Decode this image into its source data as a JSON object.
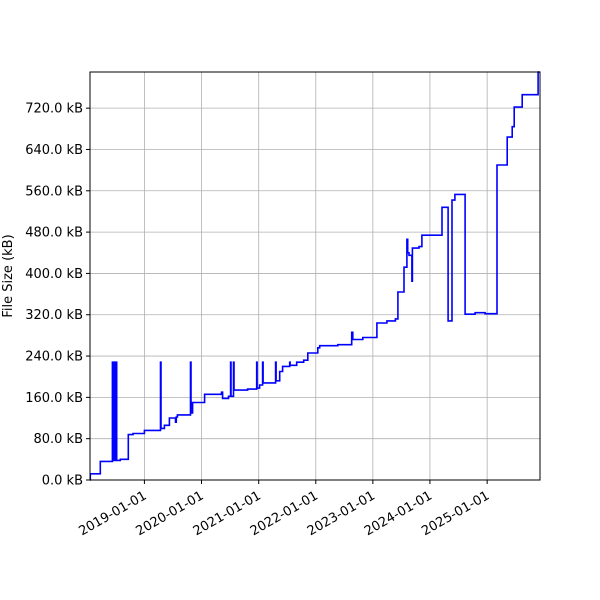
{
  "chart_data": {
    "type": "line",
    "title": "",
    "xlabel": "",
    "ylabel": "File Size (kB)",
    "xlim": [
      "2018-01-18",
      "2025-12-05"
    ],
    "ylim": [
      0,
      790
    ],
    "grid": true,
    "line_color": "#0000ff",
    "step": "post",
    "x_ticks": [
      "2019-01-01",
      "2020-01-01",
      "2021-01-01",
      "2022-01-01",
      "2023-01-01",
      "2024-01-01",
      "2025-01-01"
    ],
    "y_ticks": [
      0,
      80,
      160,
      240,
      320,
      400,
      480,
      560,
      640,
      720
    ],
    "y_tick_labels": [
      "0.0 kB",
      "80.0 kB",
      "160.0 kB",
      "240.0 kB",
      "320.0 kB",
      "400.0 kB",
      "480.0 kB",
      "560.0 kB",
      "640.0 kB",
      "720.0 kB"
    ],
    "points": [
      [
        "2018-01-18",
        0
      ],
      [
        "2018-01-20",
        12
      ],
      [
        "2018-03-25",
        36
      ],
      [
        "2018-06-10",
        228
      ],
      [
        "2018-06-14",
        38
      ],
      [
        "2018-06-20",
        228
      ],
      [
        "2018-06-26",
        38
      ],
      [
        "2018-07-02",
        228
      ],
      [
        "2018-07-08",
        38
      ],
      [
        "2018-07-31",
        40
      ],
      [
        "2018-09-20",
        88
      ],
      [
        "2018-10-20",
        90
      ],
      [
        "2019-01-01",
        96
      ],
      [
        "2019-04-14",
        228
      ],
      [
        "2019-04-17",
        100
      ],
      [
        "2019-05-09",
        106
      ],
      [
        "2019-06-10",
        120
      ],
      [
        "2019-07-19",
        112
      ],
      [
        "2019-07-24",
        122
      ],
      [
        "2019-07-31",
        126
      ],
      [
        "2019-10-23",
        228
      ],
      [
        "2019-10-26",
        130
      ],
      [
        "2019-11-05",
        150
      ],
      [
        "2020-01-21",
        166
      ],
      [
        "2020-05-08",
        170
      ],
      [
        "2020-05-15",
        158
      ],
      [
        "2020-06-22",
        162
      ],
      [
        "2020-07-05",
        228
      ],
      [
        "2020-07-08",
        162
      ],
      [
        "2020-07-24",
        228
      ],
      [
        "2020-07-27",
        174
      ],
      [
        "2020-10-22",
        176
      ],
      [
        "2020-12-19",
        228
      ],
      [
        "2020-12-22",
        178
      ],
      [
        "2021-01-07",
        184
      ],
      [
        "2021-01-26",
        228
      ],
      [
        "2021-01-29",
        188
      ],
      [
        "2021-04-19",
        228
      ],
      [
        "2021-04-22",
        192
      ],
      [
        "2021-05-15",
        210
      ],
      [
        "2021-06-03",
        220
      ],
      [
        "2021-07-18",
        228
      ],
      [
        "2021-07-21",
        222
      ],
      [
        "2021-09-01",
        228
      ],
      [
        "2021-10-16",
        232
      ],
      [
        "2021-11-11",
        246
      ],
      [
        "2022-01-14",
        256
      ],
      [
        "2022-01-26",
        260
      ],
      [
        "2022-05-22",
        262
      ],
      [
        "2022-08-19",
        286
      ],
      [
        "2022-08-26",
        272
      ],
      [
        "2022-10-29",
        276
      ],
      [
        "2023-01-27",
        304
      ],
      [
        "2023-04-01",
        308
      ],
      [
        "2023-05-25",
        312
      ],
      [
        "2023-06-10",
        364
      ],
      [
        "2023-07-19",
        412
      ],
      [
        "2023-08-07",
        466
      ],
      [
        "2023-08-12",
        440
      ],
      [
        "2023-08-20",
        435
      ],
      [
        "2023-09-08",
        385
      ],
      [
        "2023-09-11",
        449
      ],
      [
        "2023-10-23",
        452
      ],
      [
        "2023-11-11",
        474
      ],
      [
        "2024-03-18",
        528
      ],
      [
        "2024-04-26",
        308
      ],
      [
        "2024-05-21",
        542
      ],
      [
        "2024-06-09",
        553
      ],
      [
        "2024-08-13",
        321
      ],
      [
        "2024-10-16",
        324
      ],
      [
        "2024-12-19",
        322
      ],
      [
        "2025-03-05",
        610
      ],
      [
        "2025-05-09",
        664
      ],
      [
        "2025-06-10",
        684
      ],
      [
        "2025-06-23",
        722
      ],
      [
        "2025-08-13",
        746
      ],
      [
        "2025-11-23",
        790
      ]
    ]
  }
}
